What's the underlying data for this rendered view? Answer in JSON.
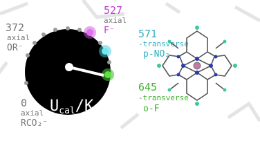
{
  "dial": {
    "unit_main": "U",
    "unit_sub": "cal",
    "unit_tail": "/K"
  },
  "labels": [
    {
      "value": "527",
      "kind": "axial",
      "ligand": "F⁻"
    },
    {
      "value": "571",
      "kind": "-transverse",
      "ligand": "p-NO₂"
    },
    {
      "value": "645",
      "kind": "-transverse",
      "ligand": "o-F"
    },
    {
      "value": "372",
      "kind": "axial",
      "ligand": "OR⁻"
    },
    {
      "value": "0",
      "kind": "axial",
      "ligand": "RCO₂⁻"
    }
  ]
}
